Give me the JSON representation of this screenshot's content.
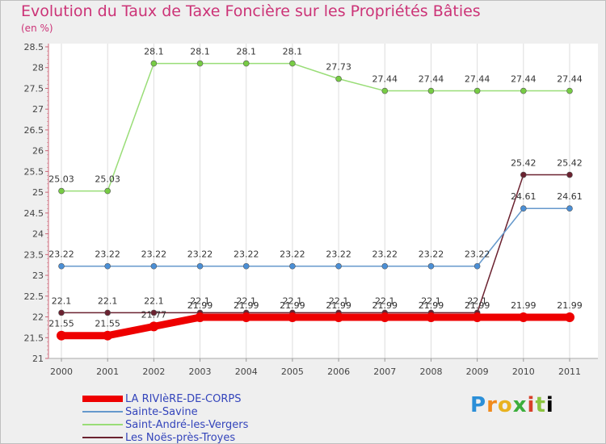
{
  "chart_data": {
    "type": "line",
    "title": "Evolution du Taux de Taxe Foncière sur les Propriétés Bâties",
    "ylabel": "(en %)",
    "xlabel": "",
    "ylim": [
      21,
      28.5
    ],
    "yticks": [
      "21",
      "21.5",
      "22",
      "22.5",
      "23",
      "23.5",
      "24",
      "24.5",
      "25",
      "25.5",
      "26",
      "26.5",
      "27",
      "27.5",
      "28",
      "28.5"
    ],
    "x": [
      "2000",
      "2001",
      "2002",
      "2003",
      "2004",
      "2005",
      "2006",
      "2007",
      "2008",
      "2009",
      "2010",
      "2011"
    ],
    "series": [
      {
        "name": "Les Noës-près-Troyes",
        "color": "#6b2230",
        "marker": "#6b2230",
        "values": [
          22.1,
          22.1,
          22.1,
          22.1,
          22.1,
          22.1,
          22.1,
          22.1,
          22.1,
          22.1,
          25.42,
          25.42
        ],
        "labels": [
          "22.1",
          "22.1",
          "22.1",
          "22.1",
          "22.1",
          "22.1",
          "22.1",
          "22.1",
          "22.1",
          "22.1",
          "25.42",
          "25.42"
        ]
      },
      {
        "name": "Saint-André-les-Vergers",
        "color": "#99dd77",
        "marker": "#77cc44",
        "values": [
          25.03,
          25.03,
          28.1,
          28.1,
          28.1,
          28.1,
          27.73,
          27.44,
          27.44,
          27.44,
          27.44,
          27.44
        ],
        "labels": [
          "25.03",
          "25.03",
          "28.1",
          "28.1",
          "28.1",
          "28.1",
          "27.73",
          "27.44",
          "27.44",
          "27.44",
          "27.44",
          "27.44"
        ]
      },
      {
        "name": "Sainte-Savine",
        "color": "#6699cc",
        "marker": "#4a8fd6",
        "values": [
          23.22,
          23.22,
          23.22,
          23.22,
          23.22,
          23.22,
          23.22,
          23.22,
          23.22,
          23.22,
          24.61,
          24.61
        ],
        "labels": [
          "23.22",
          "23.22",
          "23.22",
          "23.22",
          "23.22",
          "23.22",
          "23.22",
          "23.22",
          "23.22",
          "23.22",
          "24.61",
          "24.61"
        ]
      },
      {
        "name": "LA RIVIèRE-DE-CORPS",
        "color": "#ee0000",
        "marker": "#ee0000",
        "values": [
          21.55,
          21.55,
          21.77,
          21.99,
          21.99,
          21.99,
          21.99,
          21.99,
          21.99,
          21.99,
          21.99,
          21.99
        ],
        "labels": [
          "21.55",
          "21.55",
          "21.77",
          "21.99",
          "21.99",
          "21.99",
          "21.99",
          "21.99",
          "21.99",
          "21.99",
          "21.99",
          "21.99"
        ]
      }
    ],
    "legend": [
      {
        "name": "LA RIVIèRE-DE-CORPS",
        "color": "#ee0000",
        "weight": "thick"
      },
      {
        "name": "Sainte-Savine",
        "color": "#6699cc",
        "weight": "thin"
      },
      {
        "name": "Saint-André-les-Vergers",
        "color": "#99dd77",
        "weight": "thin"
      },
      {
        "name": "Les Noës-près-Troyes",
        "color": "#6b2230",
        "weight": "thin"
      }
    ]
  },
  "brand": {
    "letters": [
      "P",
      "r",
      "o",
      "x",
      "i",
      "t",
      "i"
    ]
  }
}
